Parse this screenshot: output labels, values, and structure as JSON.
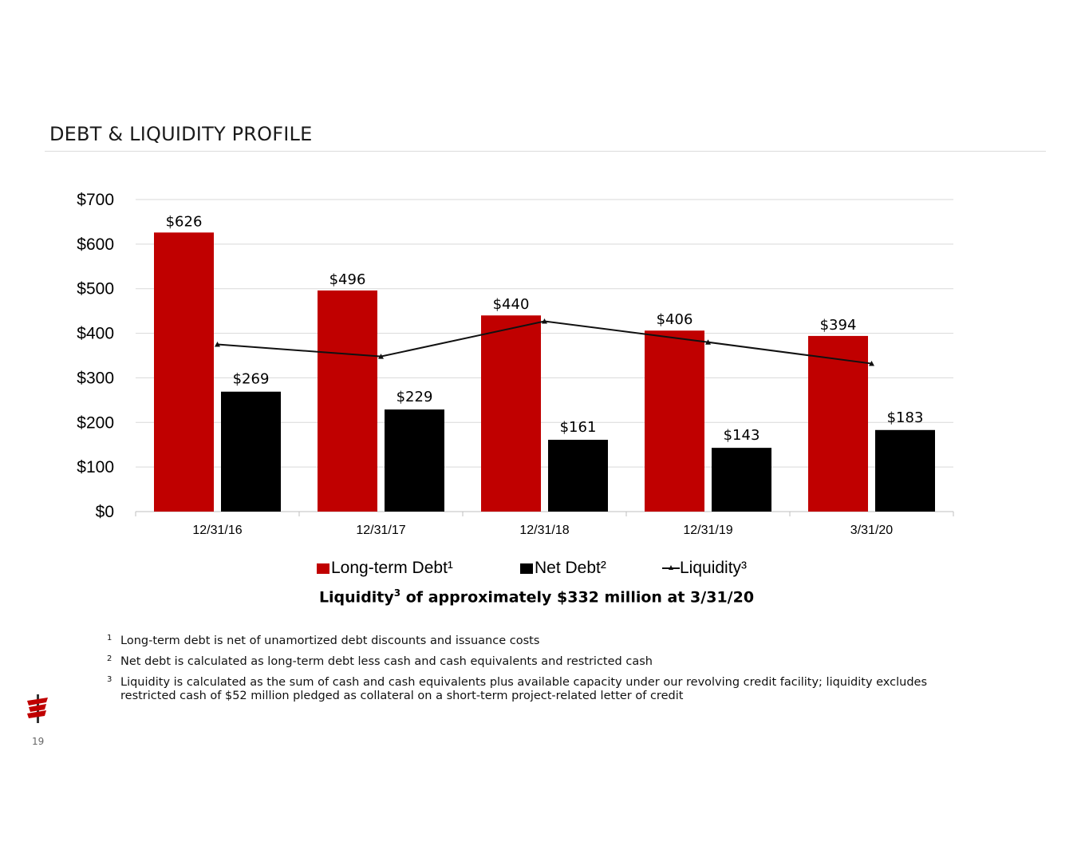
{
  "title": "DEBT & LIQUIDITY PROFILE",
  "chart_data": {
    "type": "bar",
    "categories": [
      "12/31/16",
      "12/31/17",
      "12/31/18",
      "12/31/19",
      "3/31/20"
    ],
    "series": [
      {
        "name": "Long-term Debt¹",
        "type": "bar",
        "color": "#c00000",
        "values": [
          626,
          496,
          440,
          406,
          394
        ],
        "labels": [
          "$626",
          "$496",
          "$440",
          "$406",
          "$394"
        ]
      },
      {
        "name": "Net Debt²",
        "type": "bar",
        "color": "#000000",
        "values": [
          269,
          229,
          161,
          143,
          183
        ],
        "labels": [
          "$269",
          "$229",
          "$161",
          "$143",
          "$183"
        ]
      },
      {
        "name": "Liquidity³",
        "type": "line",
        "color": "#111111",
        "values": [
          375,
          348,
          427,
          380,
          332
        ]
      }
    ],
    "yticks": [
      "$0",
      "$100",
      "$200",
      "$300",
      "$400",
      "$500",
      "$600",
      "$700"
    ],
    "ylim": [
      0,
      700
    ],
    "grid": true,
    "legend": "bottom"
  },
  "caption": {
    "pre": "Liquidity",
    "sup": "3",
    "post": " of approximately $332 million at 3/31/20"
  },
  "footnotes": [
    {
      "num": "1",
      "text": "Long-term debt is net of unamortized debt discounts and issuance costs"
    },
    {
      "num": "2",
      "text": "Net debt is calculated as long-term debt less cash and cash equivalents and restricted cash"
    },
    {
      "num": "3",
      "text": "Liquidity is calculated as the sum of cash and cash equivalents plus available capacity under our revolving credit facility; liquidity excludes restricted cash of $52 million pledged as collateral on a short-term project-related letter of credit"
    }
  ],
  "page_number": "19"
}
